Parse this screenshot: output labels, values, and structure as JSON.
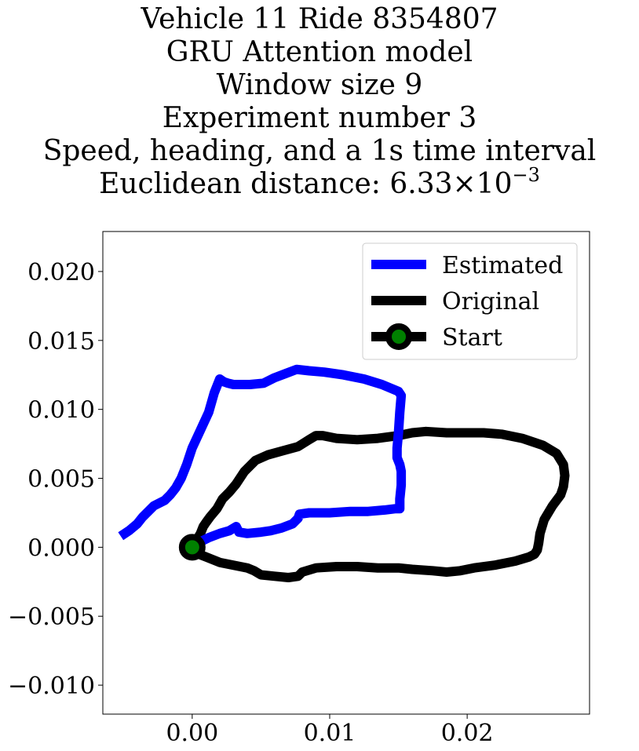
{
  "title_lines": [
    "Vehicle 11 Ride 8354807",
    "GRU Attention model",
    "Window size 9",
    "Experiment number 3",
    "Speed, heading, and a 1s time interval"
  ],
  "title_distance": {
    "prefix": "Euclidean distance: ",
    "mantissa": "6.33",
    "times": "×",
    "base": "10",
    "exponent": "−3"
  },
  "chart_data": {
    "type": "line",
    "title": "Vehicle 11 Ride 8354807 / GRU Attention model / Window size 9 / Experiment number 3 / Speed, heading, and a 1s time interval / Euclidean distance: 6.33×10^−3",
    "xlabel": "",
    "ylabel": "",
    "xlim": [
      -0.0065,
      0.0289
    ],
    "ylim": [
      -0.0121,
      0.0229
    ],
    "xticks": [
      0.0,
      0.01,
      0.02
    ],
    "xtick_labels": [
      "0.00",
      "0.01",
      "0.02"
    ],
    "yticks": [
      -0.01,
      -0.005,
      0.0,
      0.005,
      0.01,
      0.015,
      0.02
    ],
    "ytick_labels": [
      "−0.010",
      "−0.005",
      "0.000",
      "0.005",
      "0.010",
      "0.015",
      "0.020"
    ],
    "grid": false,
    "legend_position": "top-right",
    "series": [
      {
        "name": "Estimated",
        "color": "#0000ff",
        "x": [
          -0.0052,
          -0.0046,
          -0.004,
          -0.0036,
          -0.0028,
          -0.002,
          -0.0016,
          -0.0012,
          -0.0008,
          -0.0004,
          0.0,
          0.0006,
          0.0012,
          0.0016,
          0.002,
          0.0023,
          0.0026,
          0.003,
          0.0035,
          0.0042,
          0.0052,
          0.006,
          0.0068,
          0.0076,
          0.0085,
          0.0096,
          0.011,
          0.0125,
          0.0138,
          0.015,
          0.0152,
          0.0151,
          0.015,
          0.0149,
          0.0149,
          0.0151,
          0.0152,
          0.0152,
          0.0151,
          0.0151,
          0.015,
          0.0148,
          0.014,
          0.0128,
          0.0115,
          0.01,
          0.0085,
          0.0078,
          0.0077,
          0.0073,
          0.0065,
          0.0057,
          0.005,
          0.004,
          0.0034,
          0.0032,
          0.0027,
          0.002,
          0.0012,
          0.0006,
          0.0
        ],
        "y": [
          0.0008,
          0.0012,
          0.0017,
          0.0022,
          0.003,
          0.0034,
          0.0038,
          0.0043,
          0.005,
          0.006,
          0.0072,
          0.0085,
          0.0098,
          0.0112,
          0.0122,
          0.012,
          0.0119,
          0.0118,
          0.0118,
          0.0118,
          0.0119,
          0.0123,
          0.0126,
          0.0129,
          0.0128,
          0.0127,
          0.0125,
          0.0122,
          0.0118,
          0.0113,
          0.011,
          0.0098,
          0.0083,
          0.0072,
          0.0065,
          0.006,
          0.0055,
          0.0045,
          0.0035,
          0.0028,
          0.0028,
          0.0028,
          0.0027,
          0.0026,
          0.0026,
          0.0025,
          0.0025,
          0.0024,
          0.0021,
          0.0017,
          0.0014,
          0.0012,
          0.0011,
          0.001,
          0.0011,
          0.0015,
          0.0012,
          0.001,
          0.0007,
          0.0004,
          0.0
        ]
      },
      {
        "name": "Original",
        "color": "#000000",
        "x": [
          0.0,
          0.0002,
          0.0006,
          0.0008,
          0.001,
          0.0013,
          0.0018,
          0.0022,
          0.0027,
          0.0032,
          0.0038,
          0.0046,
          0.0055,
          0.0066,
          0.0077,
          0.0085,
          0.009,
          0.0095,
          0.0105,
          0.012,
          0.0135,
          0.015,
          0.016,
          0.017,
          0.0185,
          0.02,
          0.0212,
          0.0225,
          0.024,
          0.0255,
          0.0265,
          0.027,
          0.0271,
          0.027,
          0.0268,
          0.0262,
          0.0256,
          0.0253,
          0.0252,
          0.0251,
          0.0249,
          0.0245,
          0.0235,
          0.022,
          0.0205,
          0.0195,
          0.0185,
          0.0175,
          0.016,
          0.015,
          0.0135,
          0.012,
          0.0105,
          0.009,
          0.008,
          0.0077,
          0.007,
          0.006,
          0.005,
          0.0045,
          0.004,
          0.003,
          0.002,
          0.001,
          0.0
        ],
        "y": [
          0.0,
          0.0003,
          0.001,
          0.0015,
          0.0018,
          0.0022,
          0.0028,
          0.0035,
          0.004,
          0.0046,
          0.0055,
          0.0063,
          0.0067,
          0.007,
          0.0073,
          0.0078,
          0.0081,
          0.0081,
          0.0079,
          0.0078,
          0.0079,
          0.0081,
          0.0083,
          0.0084,
          0.0083,
          0.0083,
          0.0083,
          0.0082,
          0.0079,
          0.0074,
          0.0068,
          0.006,
          0.0052,
          0.0044,
          0.0038,
          0.003,
          0.002,
          0.001,
          0.0003,
          -0.0002,
          -0.0005,
          -0.0007,
          -0.001,
          -0.0013,
          -0.0015,
          -0.0017,
          -0.0018,
          -0.0017,
          -0.0016,
          -0.0015,
          -0.0015,
          -0.0014,
          -0.0014,
          -0.0015,
          -0.0018,
          -0.0021,
          -0.0022,
          -0.0021,
          -0.002,
          -0.0017,
          -0.0015,
          -0.0013,
          -0.0011,
          -0.0007,
          -0.0003
        ]
      }
    ],
    "start_marker": {
      "name": "Start",
      "x": 0.0,
      "y": 0.0,
      "face_color": "#008000",
      "edge_color": "#000000"
    }
  }
}
